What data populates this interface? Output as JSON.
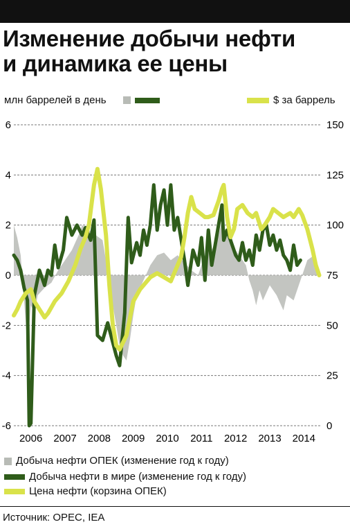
{
  "title_lines": [
    "Изменение добычи нефти",
    "и динамика ее цены"
  ],
  "left_axis_label": "млн баррелей в день",
  "right_axis_label": "$ за баррель",
  "legend": [
    "Добыча нефти ОПЕК (изменение год к году)",
    "Добыча нефти в мире (изменение год к году)",
    "Цена нефти (корзина ОПЕК)"
  ],
  "source": "Источник: OPEC, IEA",
  "colors": {
    "opec": "#b8bbb6",
    "world": "#2f5c1a",
    "price": "#d9e24a"
  },
  "chart_data": {
    "type": "line",
    "x_tick_labels": [
      "2006",
      "2007",
      "2008",
      "2009",
      "2010",
      "2011",
      "2012",
      "2013",
      "2014"
    ],
    "x_range": [
      2006.0,
      2015.0
    ],
    "y_left": {
      "min": -6,
      "max": 6,
      "ticks": [
        -6,
        -4,
        -2,
        0,
        2,
        4,
        6
      ]
    },
    "y_right": {
      "min": 0,
      "max": 150,
      "ticks": [
        0,
        25,
        50,
        75,
        100,
        125,
        150
      ]
    },
    "grid": "dashed horizontal",
    "series": [
      {
        "name": "Добыча нефти ОПЕК (изменение год к году)",
        "type": "area",
        "axis": "left",
        "color": "#b8bbb6",
        "points": [
          [
            2006.0,
            2.0
          ],
          [
            2006.1,
            1.5
          ],
          [
            2006.2,
            0.8
          ],
          [
            2006.3,
            -1.0
          ],
          [
            2006.4,
            -2.8
          ],
          [
            2006.5,
            -1.2
          ],
          [
            2006.6,
            -1.5
          ],
          [
            2006.7,
            -0.8
          ],
          [
            2006.9,
            -0.5
          ],
          [
            2007.1,
            -0.3
          ],
          [
            2007.3,
            0.2
          ],
          [
            2007.5,
            0.6
          ],
          [
            2007.7,
            1.0
          ],
          [
            2007.9,
            1.6
          ],
          [
            2008.0,
            2.0
          ],
          [
            2008.2,
            1.8
          ],
          [
            2008.4,
            1.6
          ],
          [
            2008.6,
            1.4
          ],
          [
            2008.7,
            0.6
          ],
          [
            2008.8,
            -0.4
          ],
          [
            2008.9,
            -1.2
          ],
          [
            2009.0,
            -2.0
          ],
          [
            2009.1,
            -2.8
          ],
          [
            2009.2,
            -3.2
          ],
          [
            2009.3,
            -3.4
          ],
          [
            2009.4,
            -2.6
          ],
          [
            2009.5,
            -1.6
          ],
          [
            2009.6,
            -0.8
          ],
          [
            2009.8,
            -0.2
          ],
          [
            2010.0,
            0.4
          ],
          [
            2010.2,
            0.8
          ],
          [
            2010.4,
            0.9
          ],
          [
            2010.6,
            0.6
          ],
          [
            2010.8,
            0.8
          ],
          [
            2011.0,
            0.5
          ],
          [
            2011.2,
            0.2
          ],
          [
            2011.4,
            0.0
          ],
          [
            2011.6,
            0.8
          ],
          [
            2011.8,
            1.0
          ],
          [
            2012.0,
            1.6
          ],
          [
            2012.1,
            2.2
          ],
          [
            2012.2,
            1.8
          ],
          [
            2012.4,
            1.2
          ],
          [
            2012.6,
            0.8
          ],
          [
            2012.8,
            0.4
          ],
          [
            2012.9,
            -0.2
          ],
          [
            2013.0,
            -0.6
          ],
          [
            2013.1,
            -1.2
          ],
          [
            2013.2,
            -0.6
          ],
          [
            2013.3,
            -1.0
          ],
          [
            2013.5,
            -0.4
          ],
          [
            2013.7,
            -0.8
          ],
          [
            2013.9,
            -1.4
          ],
          [
            2014.0,
            -0.8
          ],
          [
            2014.2,
            -1.0
          ],
          [
            2014.4,
            -0.2
          ],
          [
            2014.6,
            0.6
          ],
          [
            2014.8,
            0.8
          ],
          [
            2014.9,
            0.4
          ]
        ]
      },
      {
        "name": "Добыча нефти в мире (изменение год к году)",
        "type": "line",
        "axis": "left",
        "color": "#2f5c1a",
        "points": [
          [
            2006.0,
            0.8
          ],
          [
            2006.1,
            0.6
          ],
          [
            2006.2,
            0.2
          ],
          [
            2006.3,
            -0.5
          ],
          [
            2006.4,
            -1.0
          ],
          [
            2006.45,
            -6.0
          ],
          [
            2006.5,
            -5.9
          ],
          [
            2006.6,
            -0.8
          ],
          [
            2006.75,
            0.2
          ],
          [
            2006.9,
            -0.4
          ],
          [
            2007.0,
            0.2
          ],
          [
            2007.1,
            0.0
          ],
          [
            2007.2,
            1.2
          ],
          [
            2007.3,
            0.3
          ],
          [
            2007.45,
            1.0
          ],
          [
            2007.55,
            2.3
          ],
          [
            2007.7,
            1.6
          ],
          [
            2007.85,
            2.0
          ],
          [
            2008.0,
            1.6
          ],
          [
            2008.1,
            1.9
          ],
          [
            2008.25,
            1.4
          ],
          [
            2008.35,
            2.2
          ],
          [
            2008.45,
            -2.4
          ],
          [
            2008.6,
            -2.6
          ],
          [
            2008.75,
            -1.9
          ],
          [
            2009.0,
            -3.2
          ],
          [
            2009.1,
            -3.6
          ],
          [
            2009.25,
            -1.5
          ],
          [
            2009.35,
            2.3
          ],
          [
            2009.45,
            0.5
          ],
          [
            2009.6,
            1.3
          ],
          [
            2009.7,
            0.8
          ],
          [
            2009.8,
            1.8
          ],
          [
            2009.9,
            1.2
          ],
          [
            2010.0,
            2.0
          ],
          [
            2010.1,
            3.6
          ],
          [
            2010.2,
            1.8
          ],
          [
            2010.3,
            2.8
          ],
          [
            2010.4,
            3.4
          ],
          [
            2010.5,
            2.0
          ],
          [
            2010.6,
            3.6
          ],
          [
            2010.7,
            1.8
          ],
          [
            2010.8,
            2.3
          ],
          [
            2011.0,
            0.6
          ],
          [
            2011.1,
            -0.4
          ],
          [
            2011.25,
            1.0
          ],
          [
            2011.4,
            0.4
          ],
          [
            2011.5,
            1.5
          ],
          [
            2011.6,
            -0.2
          ],
          [
            2011.7,
            1.8
          ],
          [
            2011.8,
            0.4
          ],
          [
            2011.95,
            1.6
          ],
          [
            2012.1,
            2.8
          ],
          [
            2012.15,
            1.4
          ],
          [
            2012.25,
            1.8
          ],
          [
            2012.4,
            1.2
          ],
          [
            2012.5,
            0.8
          ],
          [
            2012.6,
            0.6
          ],
          [
            2012.7,
            1.3
          ],
          [
            2012.8,
            0.6
          ],
          [
            2012.9,
            1.0
          ],
          [
            2013.0,
            0.4
          ],
          [
            2013.1,
            1.6
          ],
          [
            2013.2,
            1.0
          ],
          [
            2013.3,
            1.8
          ],
          [
            2013.4,
            2.0
          ],
          [
            2013.5,
            1.2
          ],
          [
            2013.6,
            1.6
          ],
          [
            2013.7,
            1.0
          ],
          [
            2013.8,
            1.4
          ],
          [
            2013.9,
            0.8
          ],
          [
            2014.0,
            0.6
          ],
          [
            2014.1,
            0.2
          ],
          [
            2014.2,
            1.2
          ],
          [
            2014.3,
            0.4
          ],
          [
            2014.4,
            0.6
          ]
        ]
      },
      {
        "name": "Цена нефти (корзина ОПЕК)",
        "type": "line",
        "axis": "right",
        "color": "#d9e24a",
        "points": [
          [
            2006.0,
            55
          ],
          [
            2006.1,
            58
          ],
          [
            2006.2,
            62
          ],
          [
            2006.35,
            66
          ],
          [
            2006.5,
            68
          ],
          [
            2006.6,
            62
          ],
          [
            2006.75,
            58
          ],
          [
            2006.9,
            54
          ],
          [
            2007.0,
            56
          ],
          [
            2007.2,
            62
          ],
          [
            2007.4,
            66
          ],
          [
            2007.6,
            72
          ],
          [
            2007.8,
            80
          ],
          [
            2007.95,
            88
          ],
          [
            2008.1,
            94
          ],
          [
            2008.2,
            100
          ],
          [
            2008.35,
            120
          ],
          [
            2008.45,
            128
          ],
          [
            2008.55,
            118
          ],
          [
            2008.7,
            95
          ],
          [
            2008.8,
            70
          ],
          [
            2008.9,
            50
          ],
          [
            2009.0,
            40
          ],
          [
            2009.1,
            38
          ],
          [
            2009.3,
            45
          ],
          [
            2009.5,
            62
          ],
          [
            2009.7,
            68
          ],
          [
            2009.9,
            72
          ],
          [
            2010.0,
            74
          ],
          [
            2010.2,
            76
          ],
          [
            2010.4,
            74
          ],
          [
            2010.6,
            72
          ],
          [
            2010.75,
            78
          ],
          [
            2010.9,
            84
          ],
          [
            2011.0,
            94
          ],
          [
            2011.1,
            106
          ],
          [
            2011.2,
            114
          ],
          [
            2011.3,
            108
          ],
          [
            2011.45,
            106
          ],
          [
            2011.6,
            104
          ],
          [
            2011.7,
            104
          ],
          [
            2011.85,
            105
          ],
          [
            2012.0,
            112
          ],
          [
            2012.1,
            118
          ],
          [
            2012.15,
            120
          ],
          [
            2012.25,
            104
          ],
          [
            2012.35,
            94
          ],
          [
            2012.45,
            98
          ],
          [
            2012.55,
            108
          ],
          [
            2012.7,
            110
          ],
          [
            2012.85,
            106
          ],
          [
            2013.0,
            104
          ],
          [
            2013.1,
            106
          ],
          [
            2013.25,
            98
          ],
          [
            2013.35,
            100
          ],
          [
            2013.5,
            104
          ],
          [
            2013.6,
            108
          ],
          [
            2013.75,
            106
          ],
          [
            2013.9,
            104
          ],
          [
            2014.1,
            106
          ],
          [
            2014.2,
            104
          ],
          [
            2014.35,
            108
          ],
          [
            2014.45,
            105
          ],
          [
            2014.6,
            98
          ],
          [
            2014.75,
            88
          ],
          [
            2014.85,
            80
          ],
          [
            2014.95,
            75
          ]
        ]
      }
    ]
  }
}
